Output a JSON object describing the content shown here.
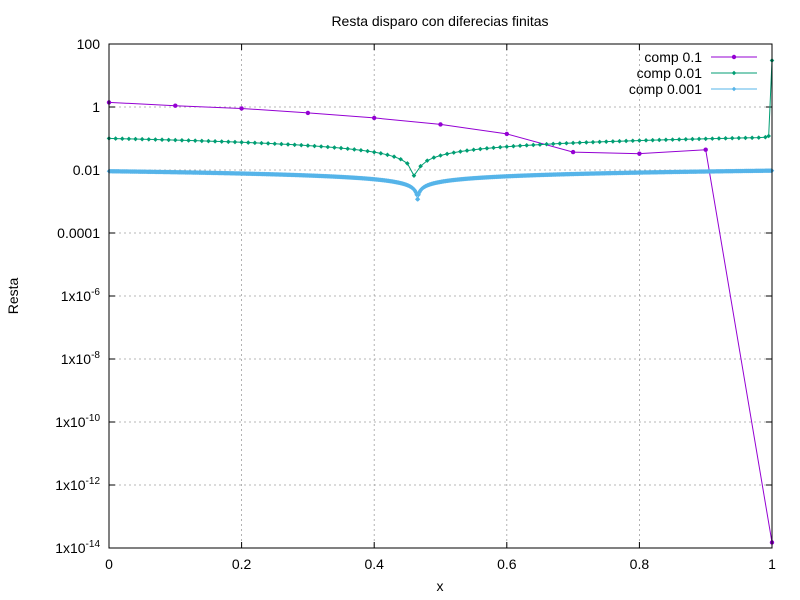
{
  "chart_data": {
    "type": "line",
    "title": "Resta disparo con diferecias finitas",
    "xlabel": "x",
    "ylabel": "Resta",
    "xlim": [
      0,
      1
    ],
    "ylim": [
      1e-14,
      100
    ],
    "yscale": "log",
    "grid": true,
    "legend_position": "top-right",
    "xticks": [
      "0",
      "0.2",
      "0.4",
      "0.6",
      "0.8",
      "1"
    ],
    "yticks": [
      {
        "mant": "100",
        "exp": ""
      },
      {
        "mant": "1",
        "exp": ""
      },
      {
        "mant": "0.01",
        "exp": ""
      },
      {
        "mant": "0.0001",
        "exp": ""
      },
      {
        "mant": "1x10",
        "exp": "-6"
      },
      {
        "mant": "1x10",
        "exp": "-8"
      },
      {
        "mant": "1x10",
        "exp": "-10"
      },
      {
        "mant": "1x10",
        "exp": "-12"
      },
      {
        "mant": "1x10",
        "exp": "-14"
      }
    ],
    "series": [
      {
        "name": "comp 0.1",
        "color": "#9400d3",
        "marker": "circle",
        "x": [
          0,
          0.1,
          0.2,
          0.3,
          0.4,
          0.5,
          0.6,
          0.7,
          0.8,
          0.9,
          1.0
        ],
        "y": [
          1.4,
          1.1,
          0.9,
          0.65,
          0.45,
          0.28,
          0.14,
          0.037,
          0.033,
          0.044,
          1.5e-14
        ]
      },
      {
        "name": "comp 0.01",
        "color": "#009e73",
        "marker": "diamond",
        "shape": "v",
        "params": {
          "A": 0.148,
          "k": 0.5,
          "x0": 0.462,
          "n": 101,
          "floor": 0.00035
        },
        "tail": [
          [
            0.99,
            0.11
          ],
          [
            0.995,
            0.12
          ],
          [
            1.0,
            30
          ]
        ]
      },
      {
        "name": "comp 0.001",
        "color": "#56b4e9",
        "marker": "diamond",
        "shape": "v",
        "params": {
          "A": 0.0115,
          "k": 0.3,
          "x0": 0.4655,
          "n": 1001,
          "floor": 5e-06
        },
        "tail": []
      }
    ]
  }
}
